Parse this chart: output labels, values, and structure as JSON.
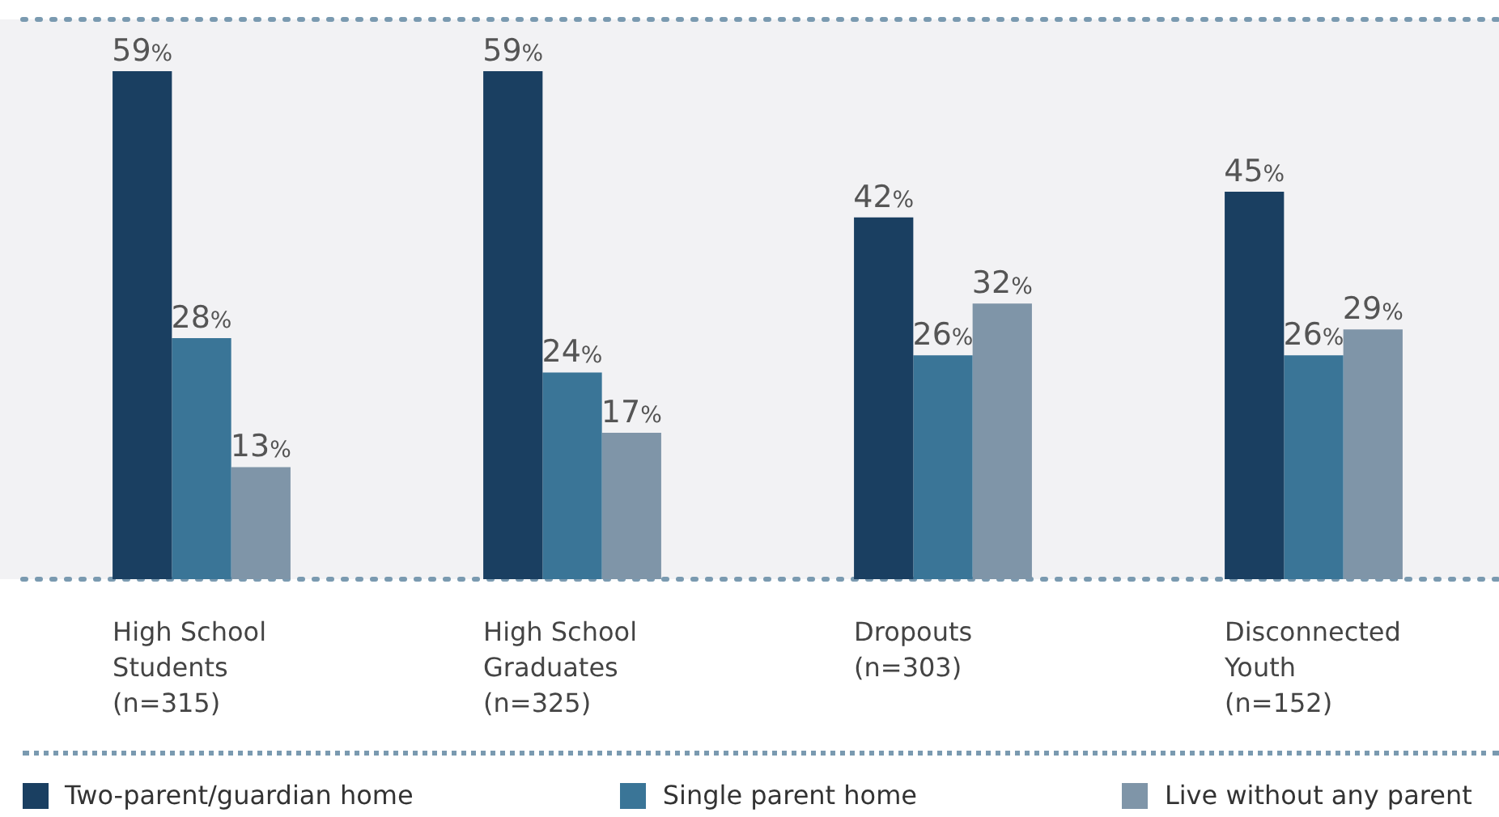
{
  "chart_data": {
    "type": "bar",
    "categories": [
      "High School\nStudents\n(n=315)",
      "High School\nGraduates\n(n=325)",
      "Dropouts\n(n=303)",
      "Disconnected\nYouth\n(n=152)"
    ],
    "series": [
      {
        "name": "Two-parent/guardian home",
        "color": "#1a3f61",
        "values": [
          59,
          59,
          42,
          45
        ],
        "value_labels": [
          "59%",
          "59%",
          "42%",
          "45%"
        ]
      },
      {
        "name": "Single parent home",
        "color": "#3a7597",
        "values": [
          28,
          24,
          26,
          26
        ],
        "value_labels": [
          "28%",
          "24%",
          "26%",
          "26%"
        ]
      },
      {
        "name": "Live without any parent",
        "color": "#7f95a8",
        "values": [
          13,
          17,
          32,
          29
        ],
        "value_labels": [
          "13%",
          "17%",
          "32%",
          "29%"
        ]
      }
    ],
    "ylim": [
      0,
      65
    ],
    "grid": false,
    "legend": "bottom"
  }
}
